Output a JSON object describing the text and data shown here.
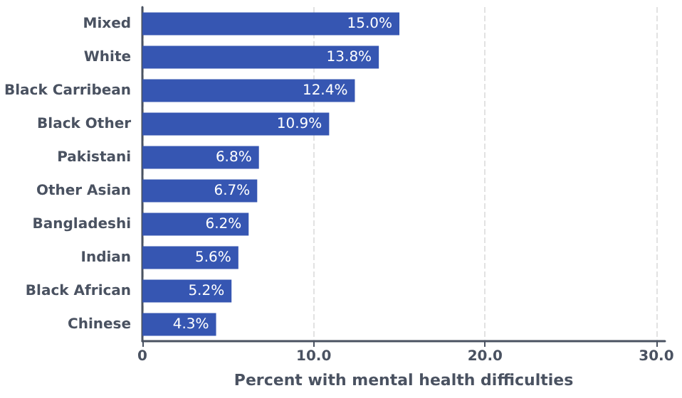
{
  "chart_data": {
    "type": "bar",
    "orientation": "horizontal",
    "xlabel": "Percent with mental health difficulties",
    "categories": [
      "Mixed",
      "White",
      "Black Carribean",
      "Black Other",
      "Pakistani",
      "Other Asian",
      "Bangladeshi",
      "Indian",
      "Black African",
      "Chinese"
    ],
    "values": [
      15.0,
      13.8,
      12.4,
      10.9,
      6.8,
      6.7,
      6.2,
      5.6,
      5.2,
      4.3
    ],
    "value_labels": [
      "15.0%",
      "13.8%",
      "12.4%",
      "10.9%",
      "6.8%",
      "6.7%",
      "6.2%",
      "5.6%",
      "5.2%",
      "4.3%"
    ],
    "color": "#3656b2",
    "xlim": [
      0,
      30.5
    ],
    "xticks": [
      0,
      {
        "value": 10,
        "label": "10.0"
      },
      {
        "value": 20,
        "label": "20.0"
      },
      {
        "value": 30,
        "label": "30.0"
      }
    ],
    "grid": "x"
  }
}
